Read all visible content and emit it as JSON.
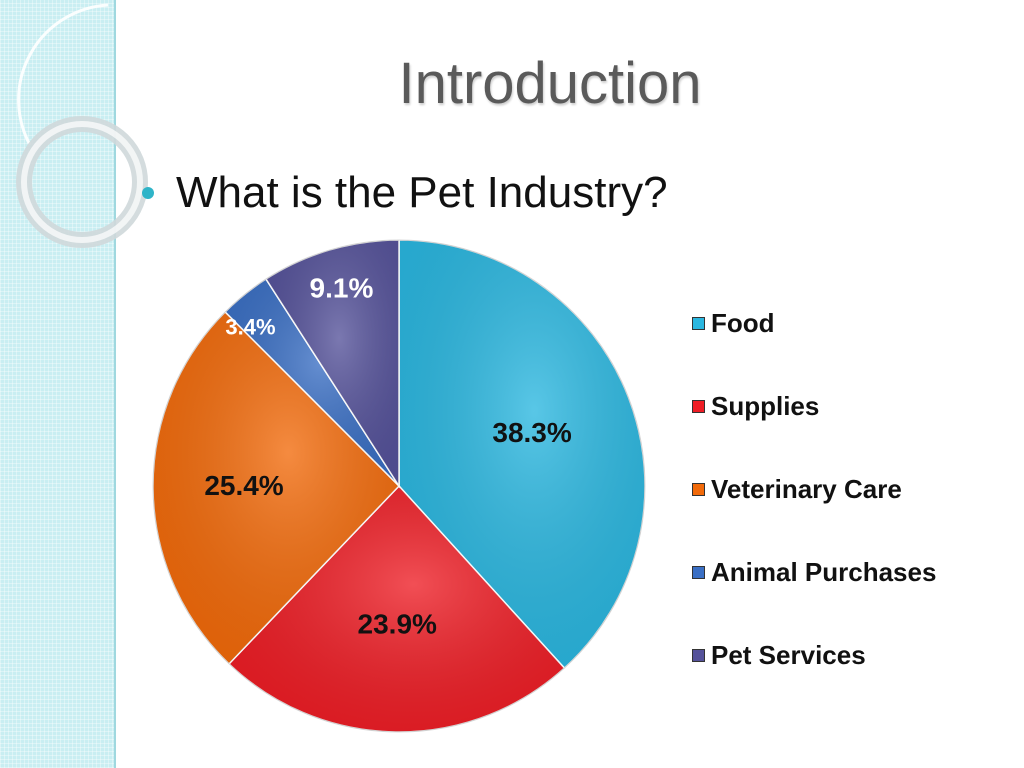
{
  "slide": {
    "title": "Introduction",
    "bullet": "What is the Pet Industry?"
  },
  "chart_data": {
    "type": "pie",
    "categories": [
      "Food",
      "Supplies",
      "Veterinary Care",
      "Animal Purchases",
      "Pet Services"
    ],
    "values": [
      38.3,
      23.9,
      25.4,
      3.4,
      9.1
    ],
    "labels": [
      "38.3%",
      "23.9%",
      "25.4%",
      "3.4%",
      "9.1%"
    ],
    "colors": [
      "#2ab7e0",
      "#ee1d25",
      "#f26a0a",
      "#3a6fc4",
      "#55529a"
    ],
    "legend_position": "right",
    "start_angle": "12 o'clock",
    "direction": "clockwise"
  }
}
